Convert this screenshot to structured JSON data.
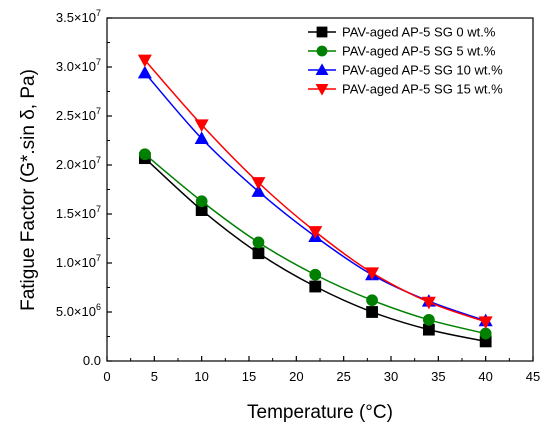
{
  "chart_data": {
    "type": "line",
    "xlabel": "Temperature (°C)",
    "ylabel": "Fatigue Factor (G*.sin δ, Pa)",
    "xlim": [
      0,
      45
    ],
    "ylim": [
      0,
      35000000
    ],
    "x_ticks": [
      0,
      5,
      10,
      15,
      20,
      25,
      30,
      35,
      40,
      45
    ],
    "x_tick_labels": [
      "0",
      "5",
      "10",
      "15",
      "20",
      "25",
      "30",
      "35",
      "40",
      "45"
    ],
    "y_ticks": [
      {
        "value": 0,
        "mantissa": "0.0",
        "exp": ""
      },
      {
        "value": 5000000,
        "mantissa": "5.0×10",
        "exp": "6"
      },
      {
        "value": 10000000,
        "mantissa": "1.0×10",
        "exp": "7"
      },
      {
        "value": 15000000,
        "mantissa": "1.5×10",
        "exp": "7"
      },
      {
        "value": 20000000,
        "mantissa": "2.0×10",
        "exp": "7"
      },
      {
        "value": 25000000,
        "mantissa": "2.5×10",
        "exp": "7"
      },
      {
        "value": 30000000,
        "mantissa": "3.0×10",
        "exp": "7"
      },
      {
        "value": 35000000,
        "mantissa": "3.5×10",
        "exp": "7"
      }
    ],
    "grid": false,
    "legend_position": "top-right",
    "x": [
      4,
      10,
      16,
      22,
      28,
      34,
      40
    ],
    "series": [
      {
        "name": "PAV-aged AP-5 SG 0 wt.%",
        "color": "#000000",
        "marker": "square",
        "values": [
          20700000,
          15400000,
          11000000,
          7600000,
          5000000,
          3200000,
          2000000
        ]
      },
      {
        "name": "PAV-aged AP-5 SG 5 wt.%",
        "color": "#008000",
        "marker": "circle",
        "values": [
          21100000,
          16300000,
          12100000,
          8800000,
          6200000,
          4200000,
          2800000
        ]
      },
      {
        "name": "PAV-aged AP-5 SG 10 wt.%",
        "color": "#0000ff",
        "marker": "triangle-up",
        "values": [
          29400000,
          22700000,
          17300000,
          12700000,
          8800000,
          6100000,
          4100000
        ]
      },
      {
        "name": "PAV-aged AP-5 SG 15 wt.%",
        "color": "#ff0000",
        "marker": "triangle-down",
        "values": [
          30700000,
          24100000,
          18200000,
          13200000,
          9000000,
          6000000,
          4000000
        ]
      }
    ]
  }
}
